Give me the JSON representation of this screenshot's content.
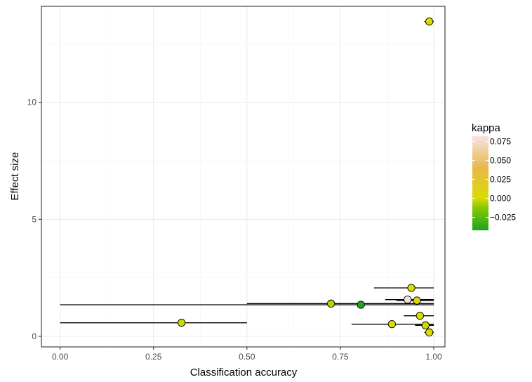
{
  "chart_data": {
    "type": "scatter",
    "xlabel": "Classification accuracy",
    "ylabel": "Effect size",
    "xlim": [
      -0.05,
      1.03
    ],
    "ylim": [
      -0.45,
      14.1
    ],
    "x_ticks": [
      0.0,
      0.25,
      0.5,
      0.75,
      1.0
    ],
    "x_tick_labels": [
      "0.00",
      "0.25",
      "0.50",
      "0.75",
      "1.00"
    ],
    "y_ticks": [
      0,
      5,
      10
    ],
    "y_tick_labels": [
      "0",
      "5",
      "10"
    ],
    "grid": true,
    "legend": {
      "title": "kappa",
      "position": "right",
      "type": "colorbar",
      "range": [
        -0.042,
        0.082
      ],
      "ticks": [
        0.075,
        0.05,
        0.025,
        0.0,
        -0.025
      ],
      "tick_labels": [
        "0.075",
        "0.050",
        "0.025",
        "0.000",
        "−0.025"
      ],
      "color_stops": [
        {
          "value": -0.042,
          "color": "#1ca51c"
        },
        {
          "value": -0.01,
          "color": "#8fcc00"
        },
        {
          "value": 0.0,
          "color": "#d9dc00"
        },
        {
          "value": 0.04,
          "color": "#e8b84a"
        },
        {
          "value": 0.082,
          "color": "#f7e2e2"
        }
      ]
    },
    "points": [
      {
        "x": 0.988,
        "y": 13.45,
        "xmin": 0.975,
        "xmax": 1.0,
        "kappa": 0.0
      },
      {
        "x": 0.94,
        "y": 2.07,
        "xmin": 0.84,
        "xmax": 1.0,
        "kappa": 0.0
      },
      {
        "x": 0.93,
        "y": 1.57,
        "xmin": 0.87,
        "xmax": 1.0,
        "kappa": 0.082
      },
      {
        "x": 0.955,
        "y": 1.53,
        "xmin": 0.9,
        "xmax": 1.0,
        "kappa": 0.005
      },
      {
        "x": 0.725,
        "y": 1.4,
        "xmin": 0.5,
        "xmax": 1.0,
        "kappa": -0.005
      },
      {
        "x": 0.805,
        "y": 1.35,
        "xmin": 0.0,
        "xmax": 1.0,
        "kappa": -0.04
      },
      {
        "x": 0.963,
        "y": 0.88,
        "xmin": 0.92,
        "xmax": 1.0,
        "kappa": 0.0
      },
      {
        "x": 0.325,
        "y": 0.58,
        "xmin": 0.0,
        "xmax": 0.5,
        "kappa": -0.002
      },
      {
        "x": 0.888,
        "y": 0.52,
        "xmin": 0.78,
        "xmax": 1.0,
        "kappa": 0.0
      },
      {
        "x": 0.978,
        "y": 0.47,
        "xmin": 0.95,
        "xmax": 1.0,
        "kappa": -0.002
      },
      {
        "x": 0.988,
        "y": 0.17,
        "xmin": 0.975,
        "xmax": 1.0,
        "kappa": 0.0
      }
    ]
  }
}
